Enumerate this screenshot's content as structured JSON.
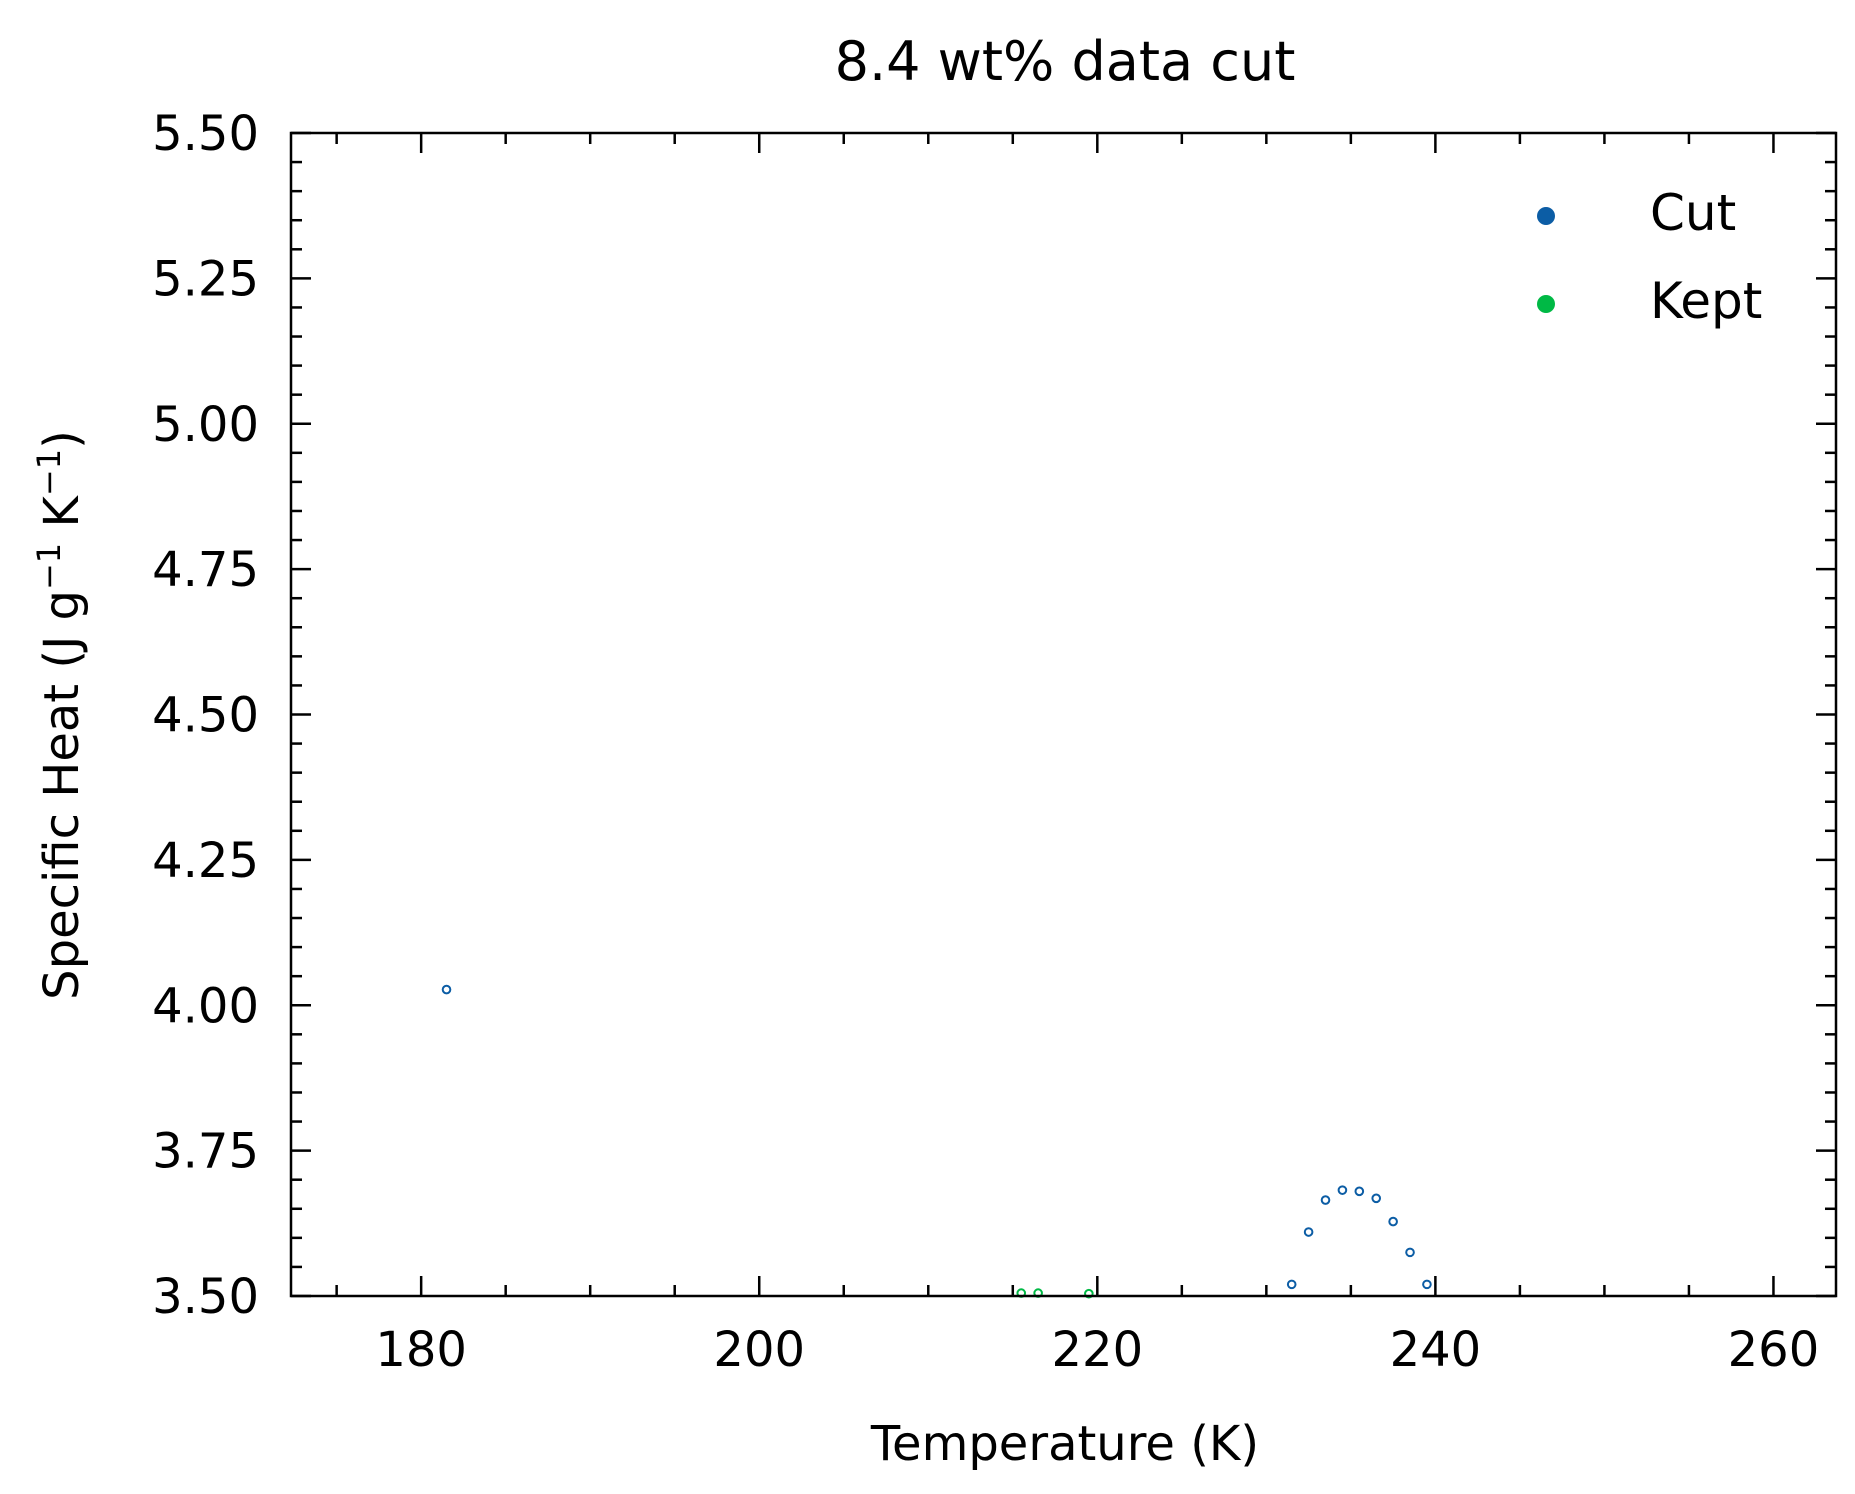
{
  "chart_data": {
    "type": "scatter",
    "title": "8.4 wt% data cut",
    "xlabel": "Temperature (K)",
    "ylabel": {
      "base": "Specific Heat (J g",
      "sup1": "−1",
      "mid": " K",
      "sup2": "−1",
      "end": ")"
    },
    "xlim": [
      172.3,
      263.7
    ],
    "ylim": [
      3.5,
      5.5
    ],
    "x_ticks": [
      180,
      200,
      220,
      240,
      260
    ],
    "x_tick_labels": [
      "180",
      "200",
      "220",
      "240",
      "260"
    ],
    "y_ticks": [
      3.5,
      3.75,
      4.0,
      4.25,
      4.5,
      4.75,
      5.0,
      5.25,
      5.5
    ],
    "y_tick_labels": [
      "3.50",
      "3.75",
      "4.00",
      "4.25",
      "4.50",
      "4.75",
      "5.00",
      "5.25",
      "5.50"
    ],
    "x_minor_step": 5,
    "y_minor_step": 0.05,
    "legend_position": "top-right",
    "grid": false,
    "series": [
      {
        "name": "Cut",
        "color": "#0C5DA5",
        "points": [
          {
            "x": 181.5,
            "y": 4.027
          },
          {
            "x": 231.5,
            "y": 3.52
          },
          {
            "x": 232.5,
            "y": 3.61
          },
          {
            "x": 233.5,
            "y": 3.665
          },
          {
            "x": 234.5,
            "y": 3.682
          },
          {
            "x": 235.5,
            "y": 3.68
          },
          {
            "x": 236.5,
            "y": 3.668
          },
          {
            "x": 237.5,
            "y": 3.628
          },
          {
            "x": 238.5,
            "y": 3.575
          },
          {
            "x": 239.5,
            "y": 3.52
          }
        ]
      },
      {
        "name": "Kept",
        "color": "#00B945",
        "points": [
          {
            "x": 215.5,
            "y": 3.505
          },
          {
            "x": 216.5,
            "y": 3.505
          },
          {
            "x": 219.5,
            "y": 3.504
          }
        ]
      }
    ]
  }
}
